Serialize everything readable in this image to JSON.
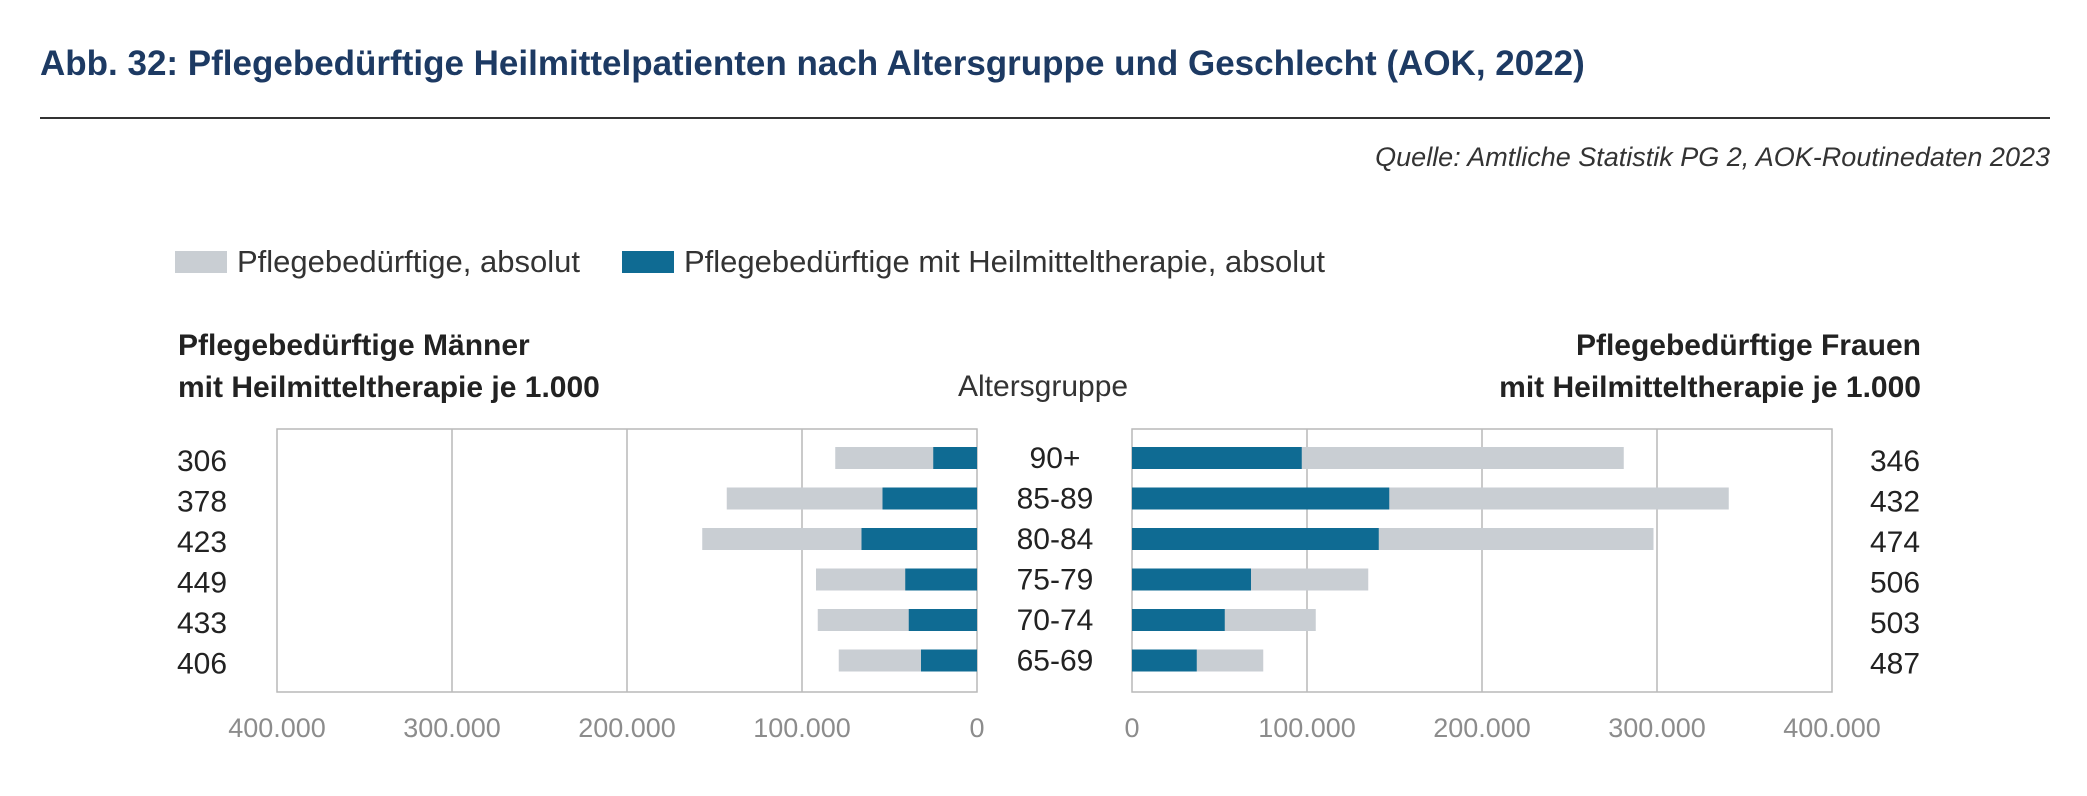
{
  "title": "Abb. 32: Pflegebedürftige Heilmittelpatienten nach Altersgruppe und Geschlecht (AOK, 2022)",
  "source": "Quelle: Amtliche Statistik PG 2, AOK-Routinedaten 2023",
  "legend": [
    {
      "label": "Pflegebedürftige, absolut",
      "color": "#c9ced3"
    },
    {
      "label": "Pflegebedürftige mit Heilmitteltherapie, absolut",
      "color": "#0f6b93"
    }
  ],
  "left_header": {
    "line1": "Pflegebedürftige Männer",
    "line2": "mit Heilmitteltherapie je 1.000"
  },
  "right_header": {
    "line1": "Pflegebedürftige Frauen",
    "line2": "mit Heilmitteltherapie je 1.000"
  },
  "center_header": "Altersgruppe",
  "chart_data": {
    "type": "bar",
    "orientation": "horizontal-butterfly",
    "categories": [
      "90+",
      "85-89",
      "80-84",
      "75-79",
      "70-74",
      "65-69"
    ],
    "xlim": [
      0,
      400000
    ],
    "x_ticks": [
      "400.000",
      "300.000",
      "200.000",
      "100.000",
      "0"
    ],
    "x_ticks_right": [
      "0",
      "100.000",
      "200.000",
      "300.000",
      "400.000"
    ],
    "grid": true,
    "men": {
      "total": [
        81000,
        143000,
        157000,
        92000,
        91000,
        79000
      ],
      "therapy": [
        25000,
        54000,
        66000,
        41000,
        39000,
        32000
      ],
      "per_1000": [
        "306",
        "378",
        "423",
        "449",
        "433",
        "406"
      ]
    },
    "women": {
      "total": [
        281000,
        341000,
        298000,
        135000,
        105000,
        75000
      ],
      "therapy": [
        97000,
        147000,
        141000,
        68000,
        53000,
        37000
      ],
      "per_1000": [
        "346",
        "432",
        "474",
        "506",
        "503",
        "487"
      ]
    }
  }
}
